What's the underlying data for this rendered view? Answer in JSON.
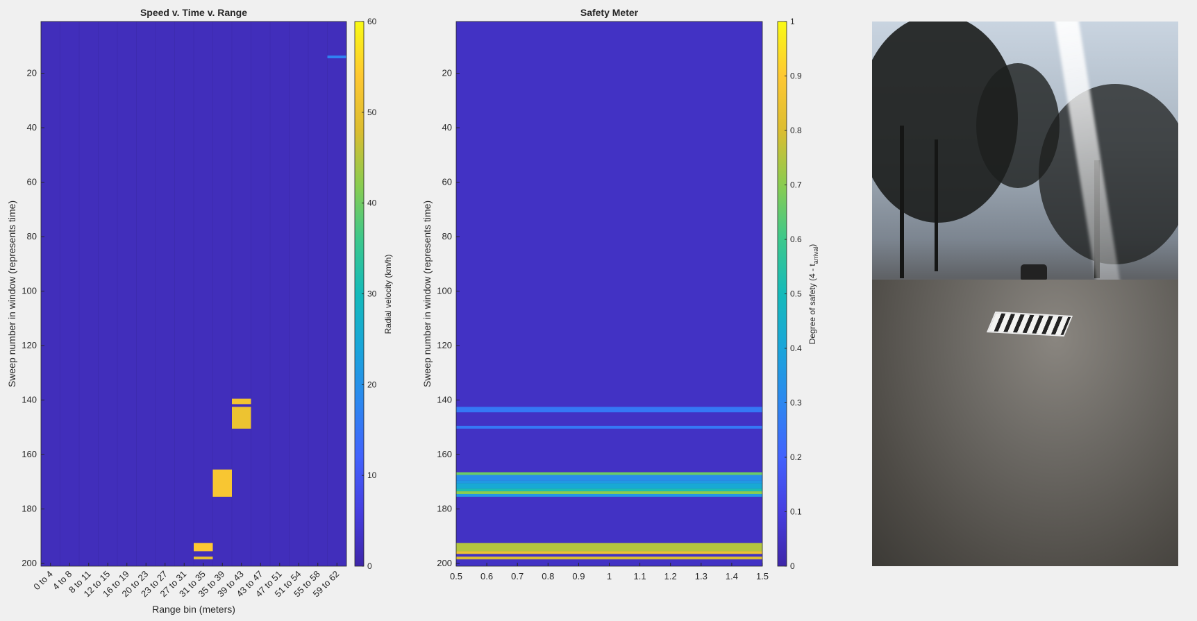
{
  "chart_data": [
    {
      "type": "heatmap",
      "title": "Speed v. Time v. Range",
      "xlabel": "Range bin (meters)",
      "ylabel": "Sweep number in window (represents time)",
      "x_categories": [
        "0 to 4",
        "4 to 8",
        "8 to 11",
        "12 to 15",
        "16 to 19",
        "20 to 23",
        "23 to 27",
        "27 to 31",
        "31 to 35",
        "35 to 39",
        "39 to 43",
        "43 to 47",
        "47 to 51",
        "51 to 54",
        "55 to 58",
        "59 to 62"
      ],
      "ylim": [
        1,
        201
      ],
      "y_direction": "reversed",
      "yticks": [
        20,
        40,
        60,
        80,
        100,
        120,
        140,
        160,
        180,
        200
      ],
      "colorbar": {
        "label": "Radial velocity (km/h)",
        "range": [
          0,
          60
        ],
        "ticks": [
          0,
          10,
          20,
          30,
          40,
          50,
          60
        ]
      },
      "background_value": 2,
      "cells": [
        {
          "x_bin": 16,
          "y_from": 13.5,
          "y_to": 14.5,
          "value": 17
        },
        {
          "x_bin": 11,
          "y_from": 139.5,
          "y_to": 141.5,
          "value": 52
        },
        {
          "x_bin": 11,
          "y_from": 142.5,
          "y_to": 150.5,
          "value": 51
        },
        {
          "x_bin": 10,
          "y_from": 165.5,
          "y_to": 175.5,
          "value": 53
        },
        {
          "x_bin": 9,
          "y_from": 192.5,
          "y_to": 195.5,
          "value": 54
        },
        {
          "x_bin": 9,
          "y_from": 197.5,
          "y_to": 198.5,
          "value": 50
        }
      ]
    },
    {
      "type": "heatmap",
      "title": "Safety Meter",
      "xlabel": "",
      "ylabel": "Sweep number in window  (represents time)",
      "xlim": [
        0.5,
        1.5
      ],
      "xticks": [
        0.5,
        0.6,
        0.7,
        0.8,
        0.9,
        1,
        1.1,
        1.2,
        1.3,
        1.4,
        1.5
      ],
      "ylim": [
        1,
        201
      ],
      "y_direction": "reversed",
      "yticks": [
        20,
        40,
        60,
        80,
        100,
        120,
        140,
        160,
        180,
        200
      ],
      "colorbar": {
        "label_prefix": "Degree of safety (4 - t",
        "label_sub": "arrival",
        "label_suffix": ")",
        "range": [
          0,
          1
        ],
        "ticks": [
          0,
          0.1,
          0.2,
          0.3,
          0.4,
          0.5,
          0.6,
          0.7,
          0.8,
          0.9,
          1
        ]
      },
      "background_value": 0.05,
      "bands": [
        {
          "y_from": 142.5,
          "y_to": 144.5,
          "value": 0.26
        },
        {
          "y_from": 149.5,
          "y_to": 150.5,
          "value": 0.26
        },
        {
          "y_from": 166.5,
          "y_to": 167.5,
          "value": 0.66
        },
        {
          "y_from": 167.5,
          "y_to": 169.5,
          "value": 0.32
        },
        {
          "y_from": 169.5,
          "y_to": 170.5,
          "value": 0.36
        },
        {
          "y_from": 170.5,
          "y_to": 172.5,
          "value": 0.42
        },
        {
          "y_from": 172.5,
          "y_to": 173.5,
          "value": 0.52
        },
        {
          "y_from": 173.5,
          "y_to": 174.5,
          "value": 0.7
        },
        {
          "y_from": 174.5,
          "y_to": 175.5,
          "value": 0.35
        },
        {
          "y_from": 192.5,
          "y_to": 195.5,
          "value": 0.75
        },
        {
          "y_from": 195.5,
          "y_to": 196.5,
          "value": 0.85
        },
        {
          "y_from": 197.5,
          "y_to": 198.5,
          "value": 0.8
        }
      ]
    }
  ],
  "photo": {
    "subject": "street-scene-photo"
  }
}
